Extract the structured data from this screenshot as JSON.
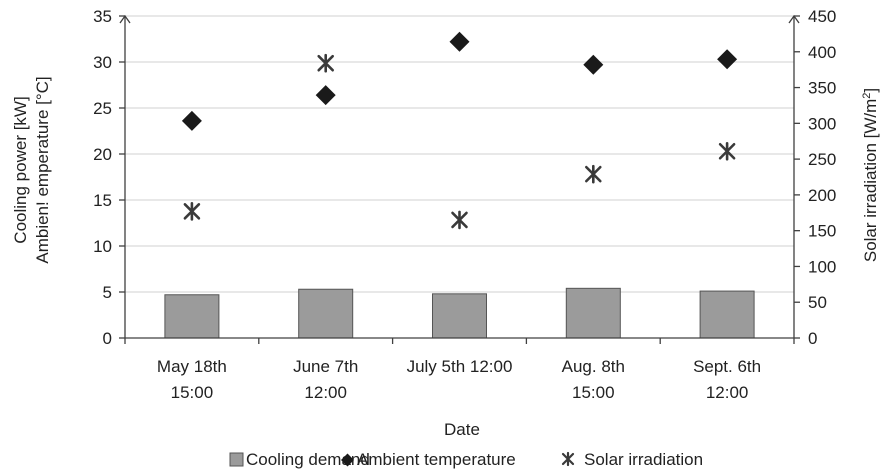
{
  "chart_data": {
    "type": "bar",
    "categories": [
      [
        "May 18th",
        "15:00"
      ],
      [
        "June 7th",
        "12:00"
      ],
      [
        "July 5th 12:00"
      ],
      [
        "Aug. 8th",
        "15:00"
      ],
      [
        "Sept. 6th",
        "12:00"
      ]
    ],
    "xlabel": "Date",
    "ylabel_left": [
      "Cooling power [kW]",
      "Ambien!    emperature [°C]"
    ],
    "ylabel_right": "Solar irradiation  [W/m²]",
    "ylim_left": [
      0,
      35
    ],
    "ylim_right": [
      0,
      450
    ],
    "yticks_left": [
      0,
      5,
      10,
      15,
      20,
      25,
      30,
      35
    ],
    "yticks_right": [
      0,
      50,
      100,
      150,
      200,
      250,
      300,
      350,
      400,
      450
    ],
    "grid": "horizontal",
    "legend_position": "bottom",
    "series": [
      {
        "name": "Cooling demand",
        "kind": "bar",
        "axis": "left",
        "values": [
          4.7,
          5.3,
          4.8,
          5.4,
          5.1
        ],
        "color": "#9b9b9b"
      },
      {
        "name": "Ambient temperature",
        "kind": "diamond",
        "axis": "left",
        "values": [
          23.6,
          26.4,
          32.2,
          29.7,
          30.3
        ],
        "color": "#1a1a1a"
      },
      {
        "name": "Solar irradiation",
        "kind": "asterisk",
        "axis": "right",
        "values": [
          177,
          384,
          165,
          229,
          261
        ],
        "color": "#3a3a3a"
      }
    ]
  }
}
